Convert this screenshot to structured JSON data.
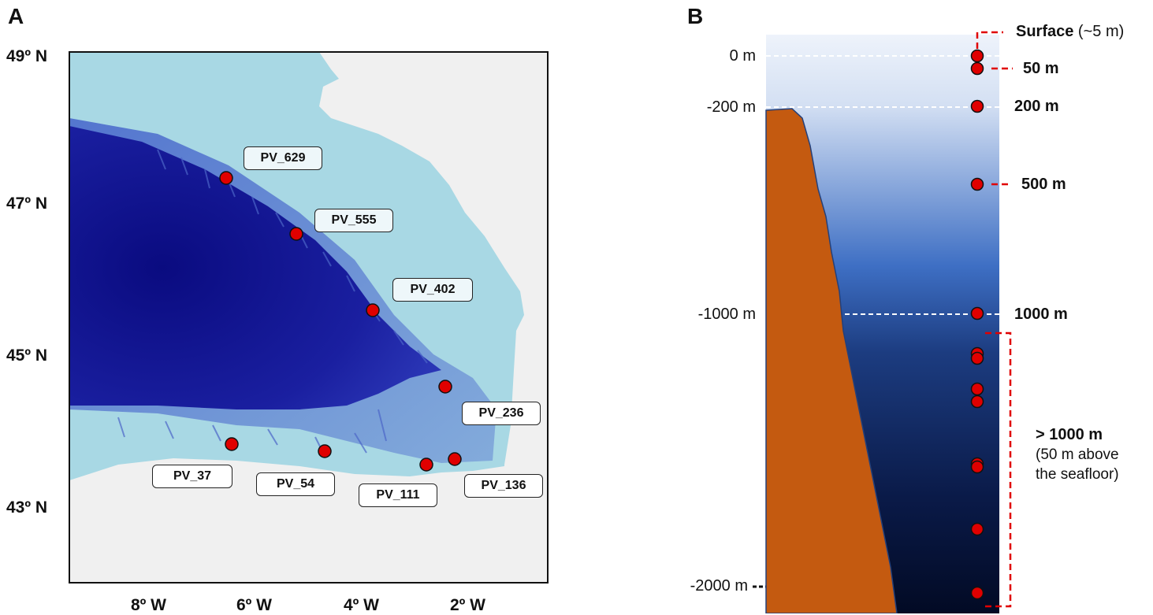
{
  "panel_a": {
    "letter": "A",
    "lat_labels": [
      "49º N",
      "47º N",
      "45º N",
      "43º N"
    ],
    "lon_labels": [
      "8º W",
      "6º W",
      "4º W",
      "2º W"
    ],
    "stations": [
      {
        "name": "PV_629"
      },
      {
        "name": "PV_555"
      },
      {
        "name": "PV_402"
      },
      {
        "name": "PV_236"
      },
      {
        "name": "PV_37"
      },
      {
        "name": "PV_54"
      },
      {
        "name": "PV_111"
      },
      {
        "name": "PV_136"
      }
    ],
    "colors": {
      "land": "#f0f0f0",
      "shelf": "#a8d8e4",
      "deep": "#0d0f8a",
      "marker": "#e00000"
    }
  },
  "panel_b": {
    "letter": "B",
    "depth_axis": [
      "0 m",
      "-200 m",
      "-1000 m",
      "-2000 m"
    ],
    "sampling_labels": {
      "surface_bold": "Surface",
      "surface_note": " (~5 m)",
      "m50": "50 m",
      "m200": "200 m",
      "m500": "500 m",
      "m1000": "1000 m",
      "deep_bold": "> 1000 m",
      "deep_note_1": "(50 m above",
      "deep_note_2": "the seafloor)"
    },
    "colors": {
      "seafloor": "#c45a10",
      "water_top": "#eef3fb",
      "water_mid": "#3e6fc4",
      "water_bottom": "#020a24",
      "bracket": "#e00000"
    }
  }
}
